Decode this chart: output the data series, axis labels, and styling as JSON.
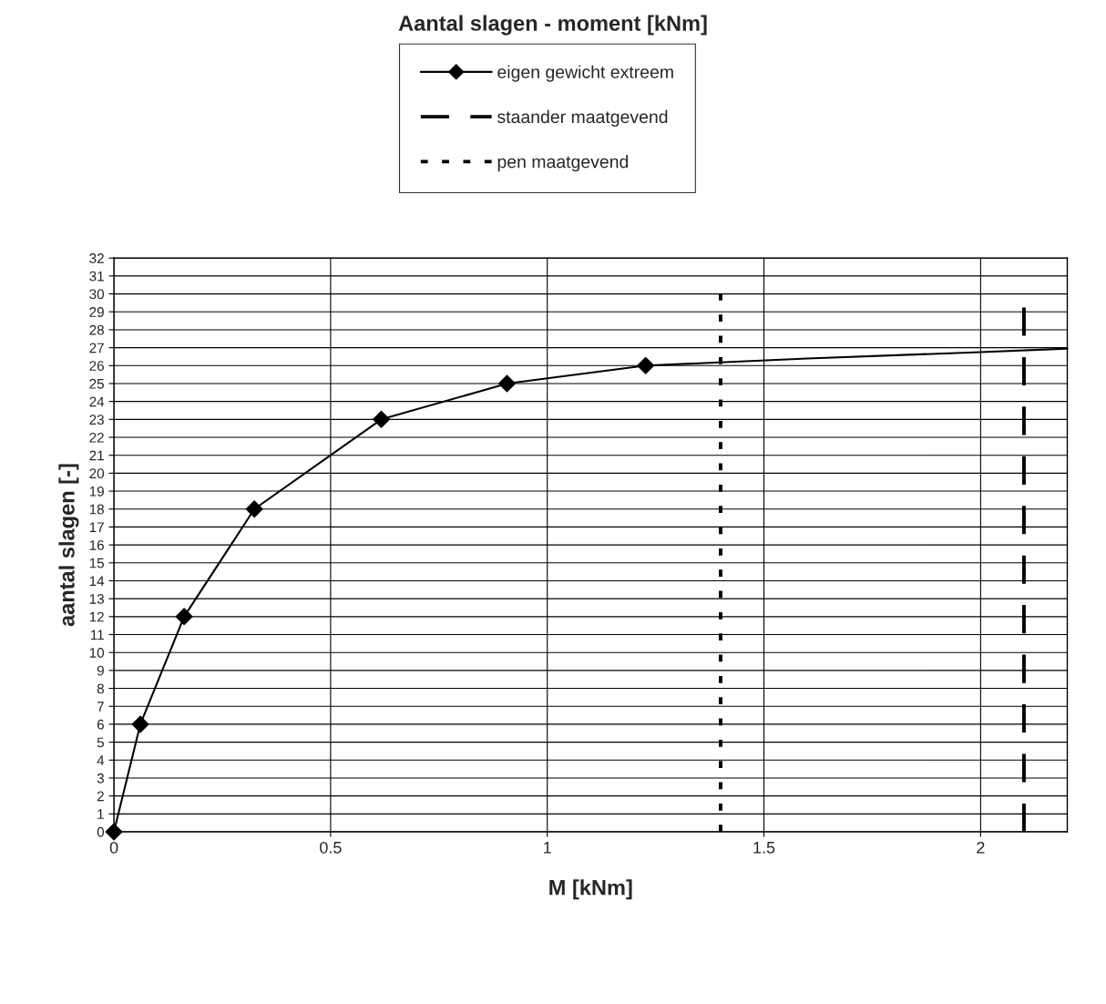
{
  "chart_data": {
    "type": "line",
    "title": "Aantal slagen - moment [kNm]",
    "xlabel": "M [kNm]",
    "ylabel": "aantal slagen [-]",
    "xlim": [
      0,
      2.2
    ],
    "xticks": [
      0,
      0.5,
      1,
      1.5,
      2
    ],
    "ylim": [
      0,
      32
    ],
    "yticks": [
      0,
      1,
      2,
      3,
      4,
      5,
      6,
      7,
      8,
      9,
      10,
      11,
      12,
      13,
      14,
      15,
      16,
      17,
      18,
      19,
      20,
      21,
      22,
      23,
      24,
      25,
      26,
      27,
      28,
      29,
      30,
      31,
      32
    ],
    "grid": true,
    "legend": "top",
    "series": [
      {
        "name": "eigen gewicht extreem",
        "color": "#000000",
        "marker": "diamond",
        "line_style": "solid",
        "x": [
          0,
          0.061,
          0.162,
          0.324,
          0.617,
          0.907,
          1.227
        ],
        "values": [
          0,
          6,
          12,
          18,
          23,
          25,
          26
        ]
      },
      {
        "color": "#000000",
        "marker": "none",
        "line_style": "solid",
        "x": [
          1.227,
          1.6,
          2.0,
          2.2
        ],
        "values": [
          26,
          26.4,
          26.75,
          26.95
        ]
      },
      {
        "name": "staander maatgevend",
        "color": "#000000",
        "marker": "none",
        "line_style": "dashed",
        "x": [
          2.1,
          2.1
        ],
        "values": [
          0,
          30
        ]
      },
      {
        "name": "pen maatgevend",
        "color": "#000000",
        "marker": "none",
        "line_style": "dotted",
        "x": [
          1.4,
          1.4
        ],
        "values": [
          0,
          30
        ]
      }
    ]
  }
}
